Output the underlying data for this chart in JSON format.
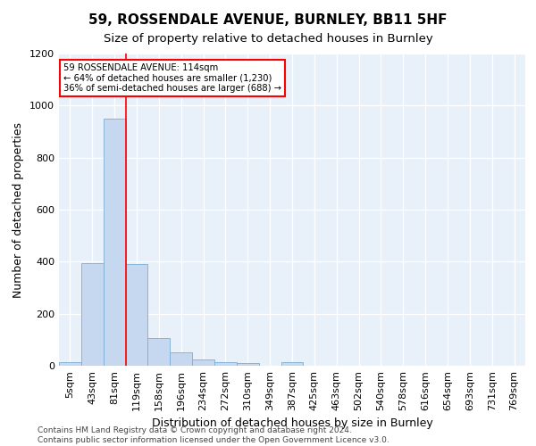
{
  "title": "59, ROSSENDALE AVENUE, BURNLEY, BB11 5HF",
  "subtitle": "Size of property relative to detached houses in Burnley",
  "xlabel": "Distribution of detached houses by size in Burnley",
  "ylabel": "Number of detached properties",
  "categories": [
    "5sqm",
    "43sqm",
    "81sqm",
    "119sqm",
    "158sqm",
    "196sqm",
    "234sqm",
    "272sqm",
    "310sqm",
    "349sqm",
    "387sqm",
    "425sqm",
    "463sqm",
    "502sqm",
    "540sqm",
    "578sqm",
    "616sqm",
    "654sqm",
    "693sqm",
    "731sqm",
    "769sqm"
  ],
  "values": [
    15,
    395,
    950,
    390,
    105,
    52,
    25,
    15,
    12,
    0,
    13,
    0,
    0,
    0,
    0,
    0,
    0,
    0,
    0,
    0,
    0
  ],
  "bar_color": "#c5d8f0",
  "bar_edge_color": "#7aadd4",
  "red_line_x": 2.5,
  "annotation_text": "59 ROSSENDALE AVENUE: 114sqm\n← 64% of detached houses are smaller (1,230)\n36% of semi-detached houses are larger (688) →",
  "annotation_box_color": "white",
  "annotation_box_edge_color": "red",
  "red_line_color": "red",
  "ylim": [
    0,
    1200
  ],
  "yticks": [
    0,
    200,
    400,
    600,
    800,
    1000,
    1200
  ],
  "footer_text": "Contains HM Land Registry data © Crown copyright and database right 2024.\nContains public sector information licensed under the Open Government Licence v3.0.",
  "background_color": "#e8f0fa",
  "grid_color": "white",
  "title_fontsize": 11,
  "subtitle_fontsize": 9.5,
  "xlabel_fontsize": 9,
  "ylabel_fontsize": 9,
  "tick_fontsize": 8,
  "footer_fontsize": 6.5
}
